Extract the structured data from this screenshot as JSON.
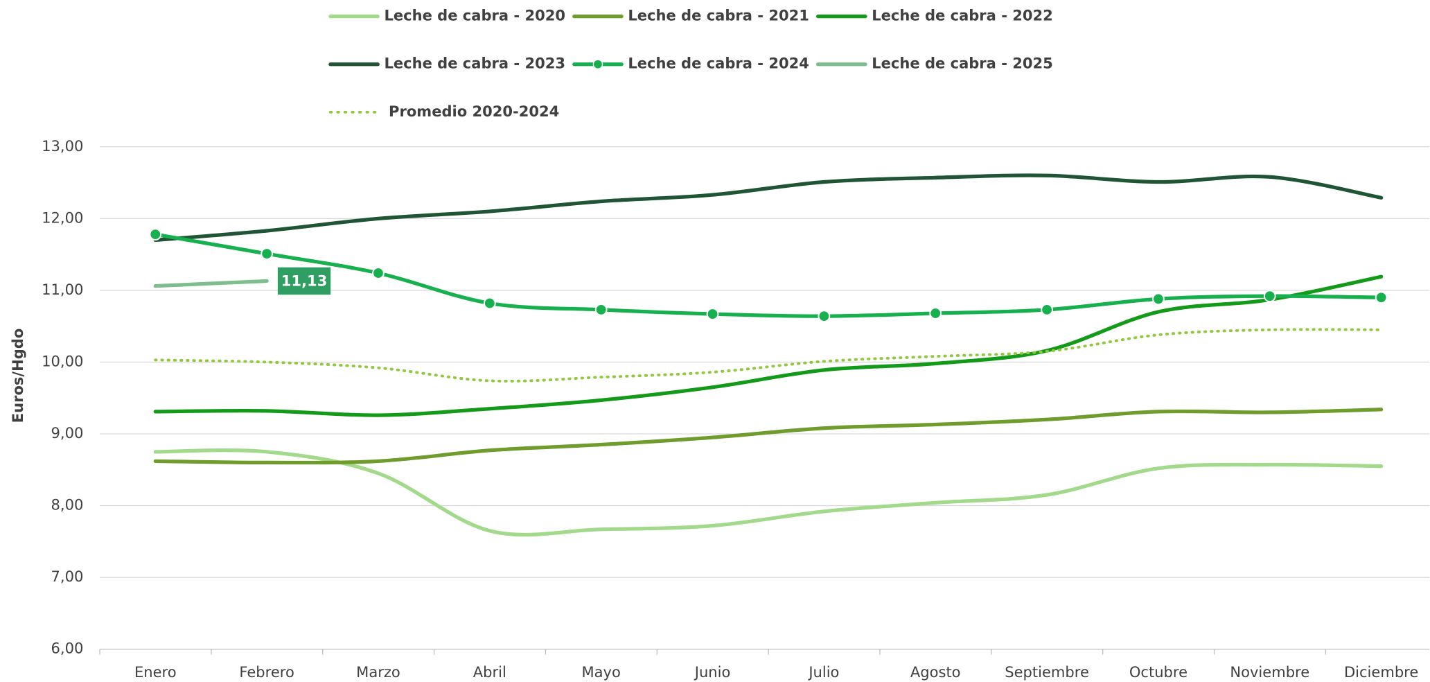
{
  "chart_data": {
    "type": "line",
    "y_label": "Euros/Hgdo",
    "categories": [
      "Enero",
      "Febrero",
      "Marzo",
      "Abril",
      "Mayo",
      "Junio",
      "Julio",
      "Agosto",
      "Septiembre",
      "Octubre",
      "Noviembre",
      "Diciembre"
    ],
    "ylim": [
      6,
      13
    ],
    "yticks": [
      {
        "value": 6,
        "label": "6,00"
      },
      {
        "value": 7,
        "label": "7,00"
      },
      {
        "value": 8,
        "label": "8,00"
      },
      {
        "value": 9,
        "label": "9,00"
      },
      {
        "value": 10,
        "label": "10,00"
      },
      {
        "value": 11,
        "label": "11,00"
      },
      {
        "value": 12,
        "label": "12,00"
      },
      {
        "value": 13,
        "label": "13,00"
      }
    ],
    "grid": true,
    "legend": "top",
    "series": [
      {
        "name": "Leche de cabra - 2020",
        "color": "#a3d98a",
        "values": [
          8.75,
          8.75,
          8.45,
          7.65,
          7.67,
          7.72,
          7.92,
          8.04,
          8.15,
          8.52,
          8.57,
          8.55
        ]
      },
      {
        "name": "Leche de cabra - 2021",
        "color": "#6f9c2c",
        "values": [
          8.62,
          8.6,
          8.62,
          8.77,
          8.85,
          8.95,
          9.08,
          9.13,
          9.2,
          9.31,
          9.3,
          9.34
        ]
      },
      {
        "name": "Leche de cabra - 2022",
        "color": "#129a18",
        "values": [
          9.31,
          9.32,
          9.26,
          9.35,
          9.47,
          9.65,
          9.89,
          9.98,
          10.16,
          10.7,
          10.87,
          11.19
        ]
      },
      {
        "name": "Leche de cabra - 2023",
        "color": "#1f5434",
        "values": [
          11.7,
          11.83,
          12.0,
          12.1,
          12.24,
          12.33,
          12.51,
          12.57,
          12.6,
          12.51,
          12.58,
          12.29
        ]
      },
      {
        "name": "Leche de cabra - 2024",
        "color": "#16b04e",
        "marker": "circle",
        "values": [
          11.78,
          11.51,
          11.24,
          10.82,
          10.73,
          10.67,
          10.64,
          10.68,
          10.73,
          10.88,
          10.92,
          10.9
        ]
      },
      {
        "name": "Leche de cabra - 2025",
        "color": "#7dbd8e",
        "values": [
          11.06,
          11.13,
          null,
          null,
          null,
          null,
          null,
          null,
          null,
          null,
          null,
          null
        ],
        "value_labels": [
          null,
          "11,13",
          null,
          null,
          null,
          null,
          null,
          null,
          null,
          null,
          null,
          null
        ],
        "label_color": "#2f9e62"
      },
      {
        "name": "Promedio 2020-2024",
        "color": "#92c83e",
        "dash": "dotted",
        "values": [
          10.03,
          10.0,
          9.92,
          9.74,
          9.79,
          9.86,
          10.01,
          10.08,
          10.15,
          10.38,
          10.45,
          10.45
        ]
      }
    ]
  }
}
